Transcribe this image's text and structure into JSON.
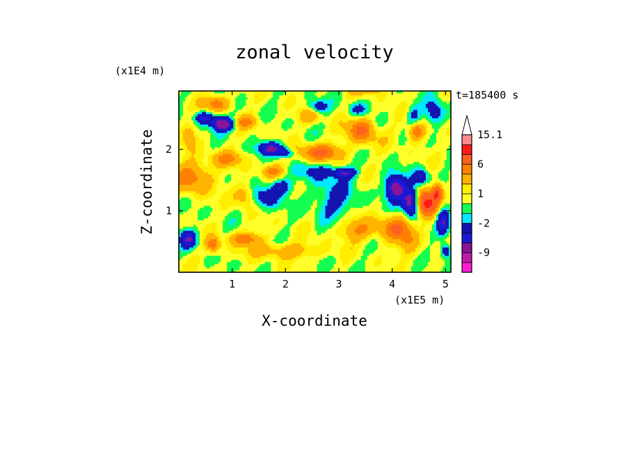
{
  "chart_data": {
    "type": "heatmap",
    "title": "zonal velocity",
    "xlabel": "X-coordinate",
    "ylabel": "Z-coordinate",
    "x_scale_label": "(x1E5 m)",
    "y_scale_label": "(x1E4 m)",
    "time_label": "t=185400 s",
    "x_ticks": [
      "1",
      "2",
      "3",
      "4",
      "5"
    ],
    "x_tick_values": [
      1,
      2,
      3,
      4,
      5
    ],
    "y_ticks": [
      "1",
      "2"
    ],
    "y_tick_values": [
      1,
      2
    ],
    "xlim": [
      0,
      5.1
    ],
    "ylim": [
      0,
      2.95
    ],
    "colorbar": {
      "labels": [
        "15.1",
        "6",
        "1",
        "-2",
        "-9"
      ],
      "label_values": [
        15.1,
        6,
        1,
        -2,
        -9
      ],
      "levels": [
        -15,
        -12,
        -9,
        -6,
        -4,
        -2,
        -1,
        0,
        1,
        2,
        4,
        6,
        9,
        12,
        15.1,
        20
      ],
      "colors": [
        "#ff1ecf",
        "#c01aa8",
        "#8a1498",
        "#1a1ad6",
        "#1414b0",
        "#00e8ff",
        "#14ff50",
        "#ffff2a",
        "#ffee00",
        "#ffb400",
        "#ff8000",
        "#ff6020",
        "#ff1a1a",
        "#ff8c8c",
        "#ffc8c8",
        "#ffffff"
      ],
      "extend": "max"
    },
    "field_description": "2D contour field of zonal velocity u(x,z); layered tilted bands, strong blue cores (-6 to -9) near z=2.4 at x~0.8, x~1.6-1.9 at z~1.9, x~4.0-4.5 at z~1.3; orange-red maxima near x~3.5 z~2.3, x~4.6 z~1.1; light green/cyan broad region centered x~2.5 z~1.0"
  }
}
